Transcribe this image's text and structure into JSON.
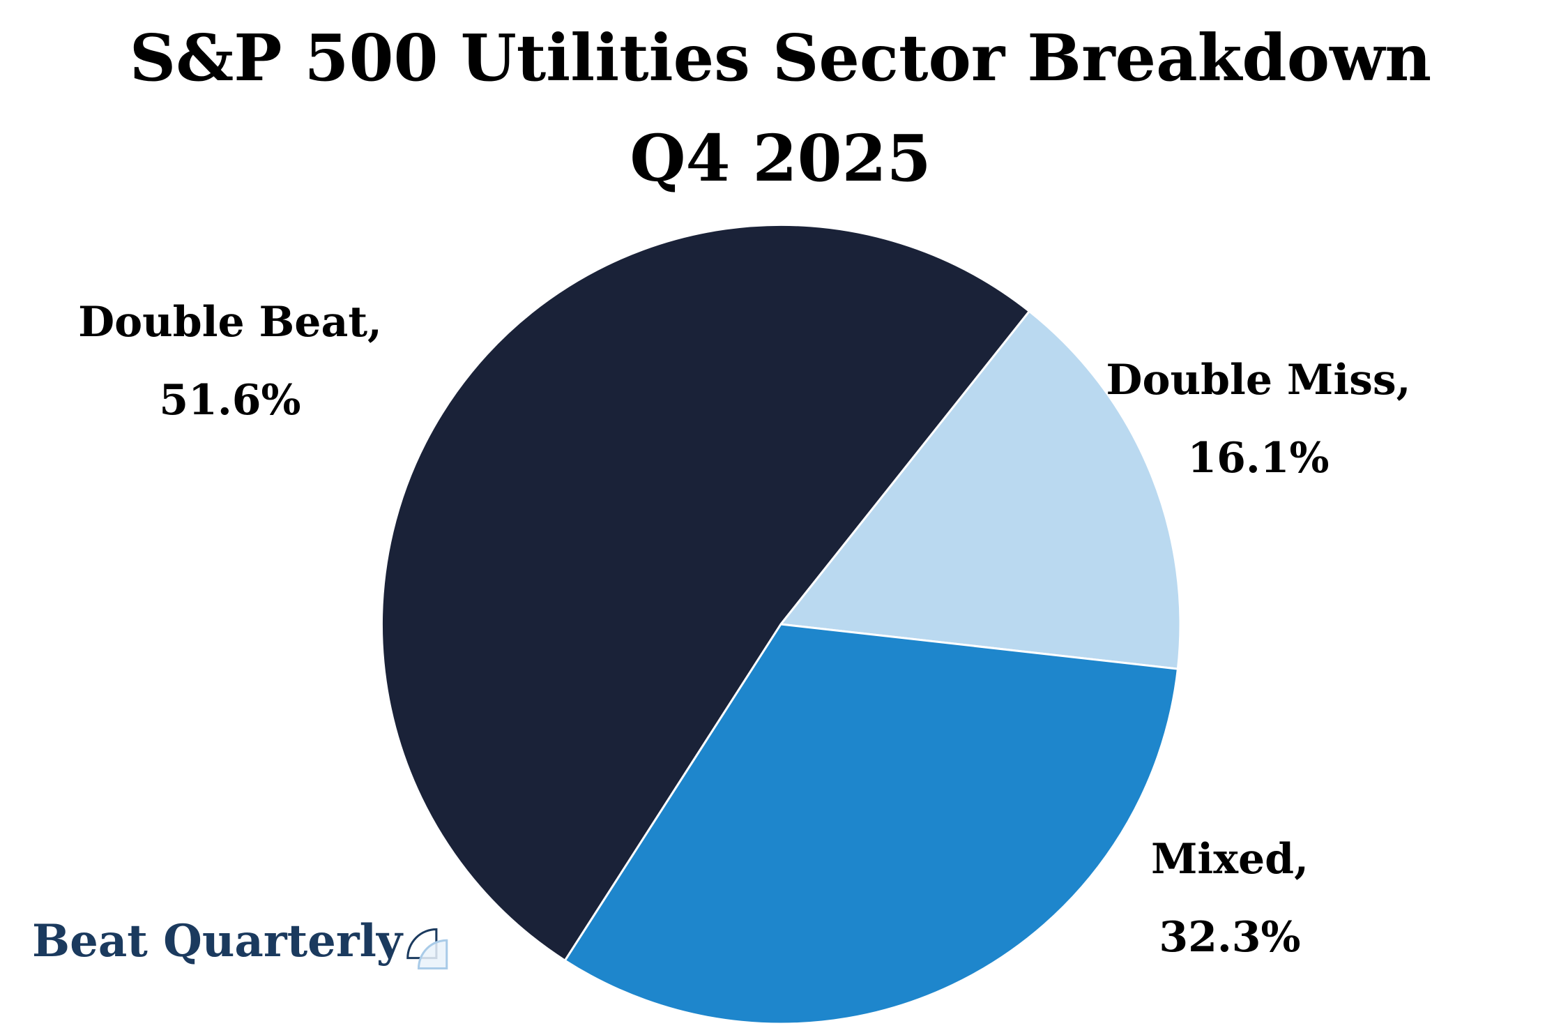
{
  "title": "S&P 500 Utilities Sector Breakdown",
  "subtitle": "Q4 2025",
  "brand": {
    "name": "Beat Quarterly"
  },
  "colors": {
    "dark_navy": "#1a2238",
    "light_blue": "#bad9f0",
    "medium_blue": "#1e86cc",
    "logo_navy": "#1b3a5e",
    "logo_icon_light_stroke": "#a9cbe8",
    "logo_icon_light_fill": "#e9f2fa",
    "slice_separator": "#ffffff",
    "background": "#ffffff"
  },
  "chart_data": {
    "type": "pie",
    "title": "S&P 500 Utilities Sector Breakdown Q4 2025",
    "legend_position": "none",
    "labels_position": "outside",
    "start_angle": 237.3,
    "direction": "clockwise",
    "slices": [
      {
        "label": "Double Beat",
        "value": 51.6,
        "unit": "%",
        "color": "#1a2238",
        "callout_line1": "Double Beat,",
        "callout_line2": "51.6%"
      },
      {
        "label": "Double Miss",
        "value": 16.1,
        "unit": "%",
        "color": "#bad9f0",
        "callout_line1": "Double Miss,",
        "callout_line2": "16.1%"
      },
      {
        "label": "Mixed",
        "value": 32.3,
        "unit": "%",
        "color": "#1e86cc",
        "callout_line1": "Mixed,",
        "callout_line2": "32.3%"
      }
    ]
  }
}
